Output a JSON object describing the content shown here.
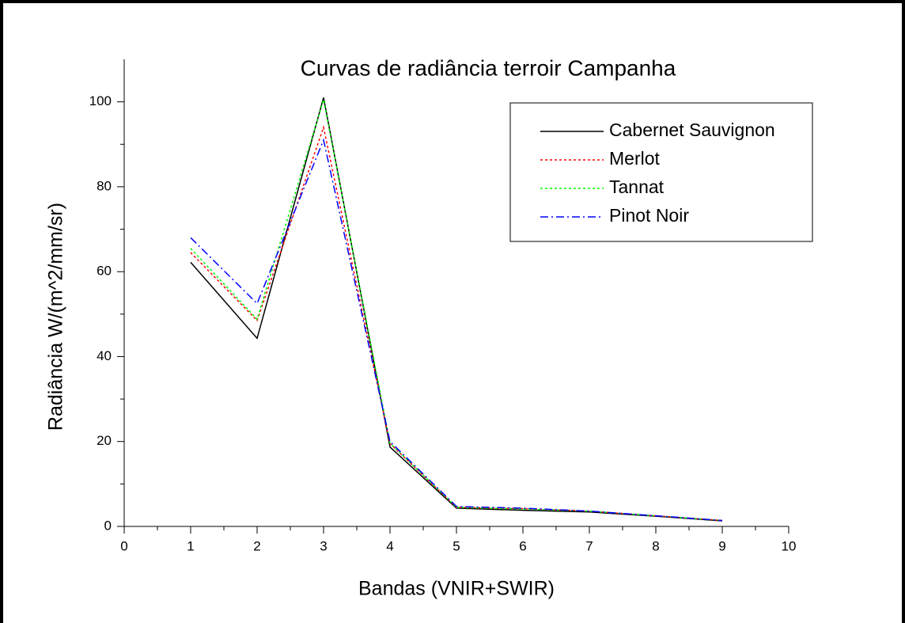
{
  "chart_data": {
    "type": "line",
    "title": "Curvas de radiância terroir Campanha",
    "xlabel": "Bandas (VNIR+SWIR)",
    "ylabel": "Radiância W/(m^2/mm/sr)",
    "x": [
      1,
      2,
      3,
      4,
      5,
      6,
      7,
      8,
      9
    ],
    "series": [
      {
        "name": "Cabernet Sauvignon",
        "color": "#000000",
        "dash": "solid",
        "values": [
          62.2,
          44.3,
          101,
          18.7,
          4.3,
          3.8,
          3.4,
          2.4,
          1.3
        ]
      },
      {
        "name": "Merlot",
        "color": "#ff0000",
        "dash": "dot",
        "values": [
          64.5,
          48.5,
          94,
          19.5,
          4.5,
          4.2,
          3.6,
          2.5,
          1.4
        ]
      },
      {
        "name": "Tannat",
        "color": "#00ff00",
        "dash": "dot",
        "values": [
          65.5,
          48.8,
          100.5,
          19.6,
          4.5,
          4.1,
          3.6,
          2.5,
          1.4
        ]
      },
      {
        "name": "Pinot Noir",
        "color": "#0000ff",
        "dash": "dashdot",
        "values": [
          68,
          52.5,
          91,
          20,
          4.7,
          4.3,
          3.6,
          2.5,
          1.4
        ]
      }
    ],
    "xlim": [
      0,
      10
    ],
    "xticks": [
      0,
      1,
      2,
      3,
      4,
      5,
      6,
      7,
      8,
      9,
      10
    ],
    "ylim": [
      0,
      110
    ],
    "yticks": [
      0,
      20,
      40,
      60,
      80,
      100
    ],
    "legend": "upper right",
    "grid": false
  }
}
